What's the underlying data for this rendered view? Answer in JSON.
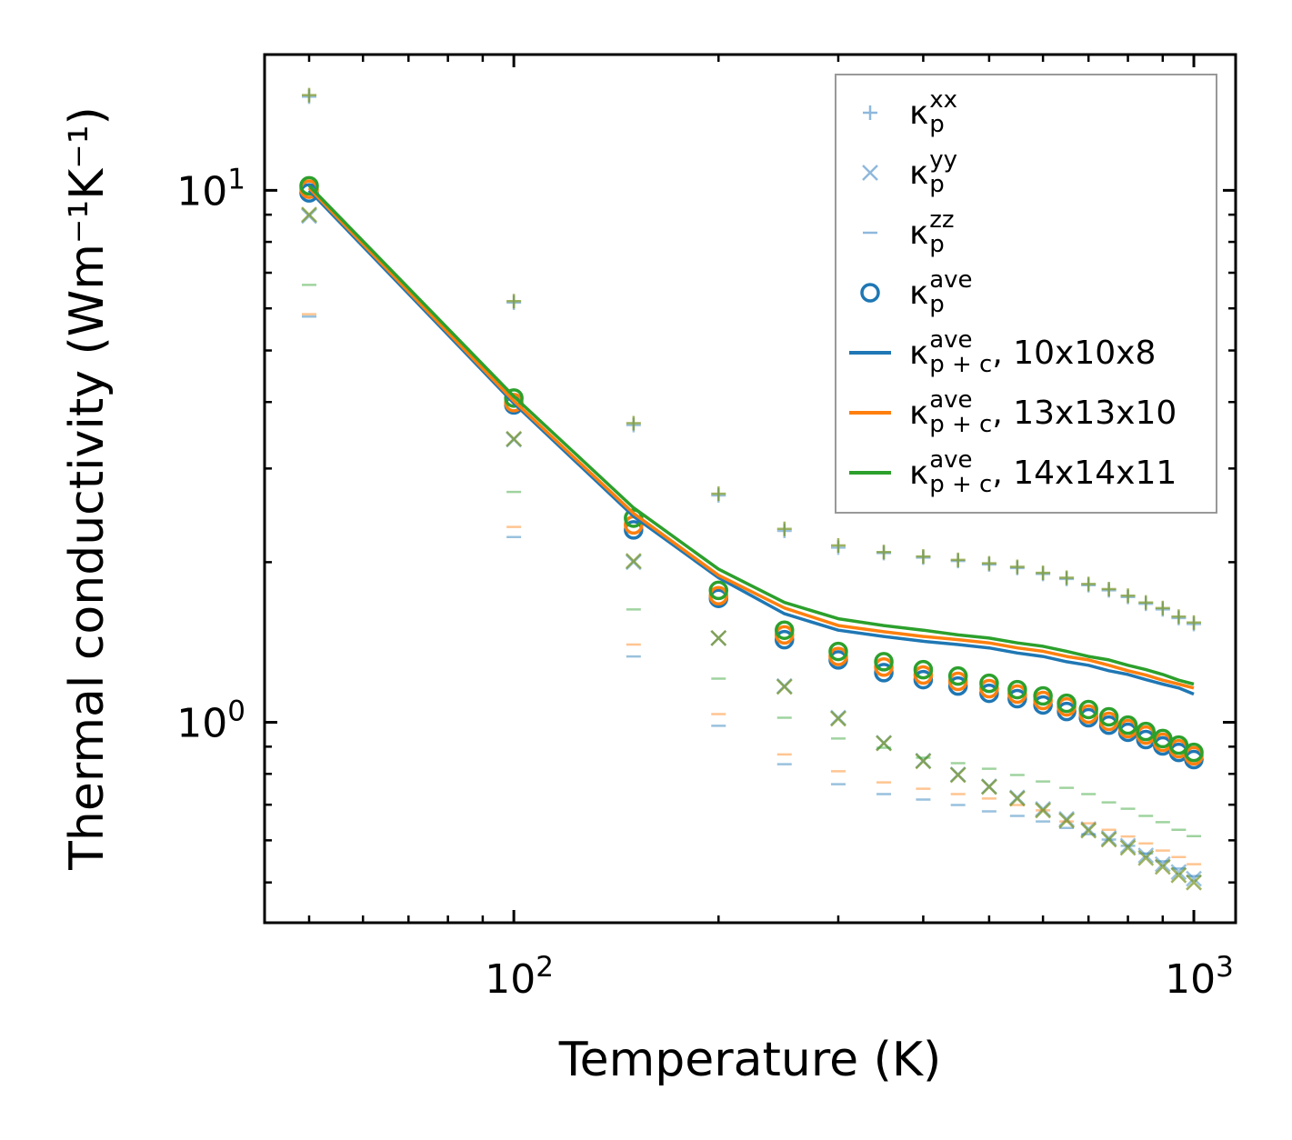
{
  "chart_data": {
    "type": "scatter",
    "title": "",
    "xlabel": "Temperature (K)",
    "ylabel": "Thermal conductivity (Wm⁻¹K⁻¹)",
    "xscale": "log",
    "yscale": "log",
    "xlim": [
      43,
      1152
    ],
    "ylim": [
      0.42,
      18
    ],
    "grid": false,
    "legend_position": "top-right",
    "x_ticks": [
      {
        "value": 100,
        "base": "10",
        "exp": "2"
      },
      {
        "value": 1000,
        "base": "10",
        "exp": "3"
      }
    ],
    "y_ticks": [
      {
        "value": 1,
        "base": "10",
        "exp": "0"
      },
      {
        "value": 10,
        "base": "10",
        "exp": "1"
      }
    ],
    "x": [
      50,
      100,
      150,
      200,
      250,
      300,
      350,
      400,
      450,
      500,
      550,
      600,
      650,
      700,
      750,
      800,
      850,
      900,
      950,
      1000
    ],
    "meshes": [
      {
        "name": "10x10x8",
        "color": "#1f77b4",
        "kxx": [
          15.0,
          6.15,
          3.62,
          2.67,
          2.29,
          2.13,
          2.08,
          2.04,
          2.01,
          1.98,
          1.95,
          1.9,
          1.86,
          1.81,
          1.77,
          1.72,
          1.67,
          1.63,
          1.57,
          1.53
        ],
        "kyy": [
          8.95,
          3.4,
          2.0,
          1.44,
          1.17,
          1.02,
          0.915,
          0.847,
          0.798,
          0.758,
          0.722,
          0.687,
          0.658,
          0.63,
          0.606,
          0.586,
          0.562,
          0.541,
          0.523,
          0.508
        ],
        "kzz": [
          5.79,
          2.23,
          1.33,
          0.985,
          0.834,
          0.765,
          0.733,
          0.716,
          0.699,
          0.68,
          0.667,
          0.651,
          0.633,
          0.616,
          0.602,
          0.586,
          0.567,
          0.548,
          0.531,
          0.514
        ],
        "kave": [
          9.89,
          3.95,
          2.3,
          1.71,
          1.43,
          1.31,
          1.24,
          1.203,
          1.17,
          1.134,
          1.108,
          1.078,
          1.048,
          1.02,
          0.988,
          0.958,
          0.928,
          0.903,
          0.878,
          0.851
        ],
        "kave_pc": [
          10.0,
          3.98,
          2.44,
          1.87,
          1.6,
          1.49,
          1.45,
          1.42,
          1.4,
          1.38,
          1.35,
          1.33,
          1.3,
          1.28,
          1.25,
          1.23,
          1.203,
          1.18,
          1.16,
          1.13
        ]
      },
      {
        "name": "13x13x10",
        "color": "#ff7f0e",
        "kxx": [
          15.1,
          6.19,
          3.65,
          2.69,
          2.31,
          2.15,
          2.09,
          2.05,
          2.02,
          1.99,
          1.96,
          1.91,
          1.87,
          1.82,
          1.78,
          1.73,
          1.68,
          1.64,
          1.58,
          1.54
        ],
        "kyy": [
          9.0,
          3.41,
          2.01,
          1.44,
          1.166,
          1.016,
          0.913,
          0.845,
          0.796,
          0.756,
          0.719,
          0.683,
          0.654,
          0.626,
          0.602,
          0.581,
          0.556,
          0.535,
          0.516,
          0.5
        ],
        "kzz": [
          5.85,
          2.33,
          1.4,
          1.036,
          0.87,
          0.809,
          0.771,
          0.75,
          0.733,
          0.719,
          0.699,
          0.683,
          0.651,
          0.646,
          0.628,
          0.61,
          0.592,
          0.574,
          0.558,
          0.541
        ],
        "kave": [
          10.05,
          3.99,
          2.35,
          1.73,
          1.46,
          1.33,
          1.27,
          1.227,
          1.194,
          1.157,
          1.13,
          1.099,
          1.069,
          1.036,
          1.004,
          0.973,
          0.946,
          0.917,
          0.892,
          0.865
        ],
        "kave_pc": [
          10.1,
          4.02,
          2.47,
          1.89,
          1.64,
          1.52,
          1.48,
          1.45,
          1.43,
          1.41,
          1.38,
          1.36,
          1.33,
          1.31,
          1.28,
          1.25,
          1.227,
          1.2,
          1.18,
          1.16
        ]
      },
      {
        "name": "14x14x11",
        "color": "#2ca02c",
        "kxx": [
          15.1,
          6.19,
          3.65,
          2.69,
          2.31,
          2.15,
          2.09,
          2.05,
          2.02,
          1.99,
          1.96,
          1.91,
          1.87,
          1.82,
          1.78,
          1.73,
          1.68,
          1.64,
          1.58,
          1.54
        ],
        "kyy": [
          9.0,
          3.41,
          2.01,
          1.44,
          1.166,
          1.016,
          0.913,
          0.845,
          0.796,
          0.756,
          0.719,
          0.683,
          0.654,
          0.626,
          0.602,
          0.581,
          0.556,
          0.535,
          0.516,
          0.5
        ],
        "kzz": [
          6.64,
          2.71,
          1.63,
          1.208,
          1.02,
          0.932,
          0.896,
          0.858,
          0.838,
          0.818,
          0.796,
          0.774,
          0.753,
          0.733,
          0.707,
          0.688,
          0.667,
          0.649,
          0.628,
          0.611
        ],
        "kave": [
          10.2,
          4.07,
          2.42,
          1.77,
          1.49,
          1.359,
          1.3,
          1.256,
          1.222,
          1.184,
          1.152,
          1.121,
          1.086,
          1.057,
          1.024,
          0.988,
          0.961,
          0.932,
          0.906,
          0.878
        ],
        "kave_pc": [
          10.2,
          4.1,
          2.53,
          1.94,
          1.68,
          1.566,
          1.52,
          1.49,
          1.46,
          1.44,
          1.41,
          1.39,
          1.36,
          1.33,
          1.31,
          1.28,
          1.256,
          1.23,
          1.2,
          1.18
        ]
      }
    ],
    "legend": [
      {
        "marker": "plus",
        "symbol": "κ",
        "sub": "p",
        "sup": "xx",
        "suffix": ""
      },
      {
        "marker": "cross",
        "symbol": "κ",
        "sub": "p",
        "sup": "yy",
        "suffix": ""
      },
      {
        "marker": "dash",
        "symbol": "κ",
        "sub": "p",
        "sup": "zz",
        "suffix": ""
      },
      {
        "marker": "circle",
        "symbol": "κ",
        "sub": "p",
        "sup": "ave",
        "suffix": ""
      },
      {
        "marker": "line",
        "color": "#1f77b4",
        "symbol": "κ",
        "sub": "p + c",
        "sup": "ave",
        "suffix": ", 10x10x8"
      },
      {
        "marker": "line",
        "color": "#ff7f0e",
        "symbol": "κ",
        "sub": "p + c",
        "sup": "ave",
        "suffix": ", 13x13x10"
      },
      {
        "marker": "line",
        "color": "#2ca02c",
        "symbol": "κ",
        "sub": "p + c",
        "sup": "ave",
        "suffix": ", 14x14x11"
      }
    ]
  }
}
